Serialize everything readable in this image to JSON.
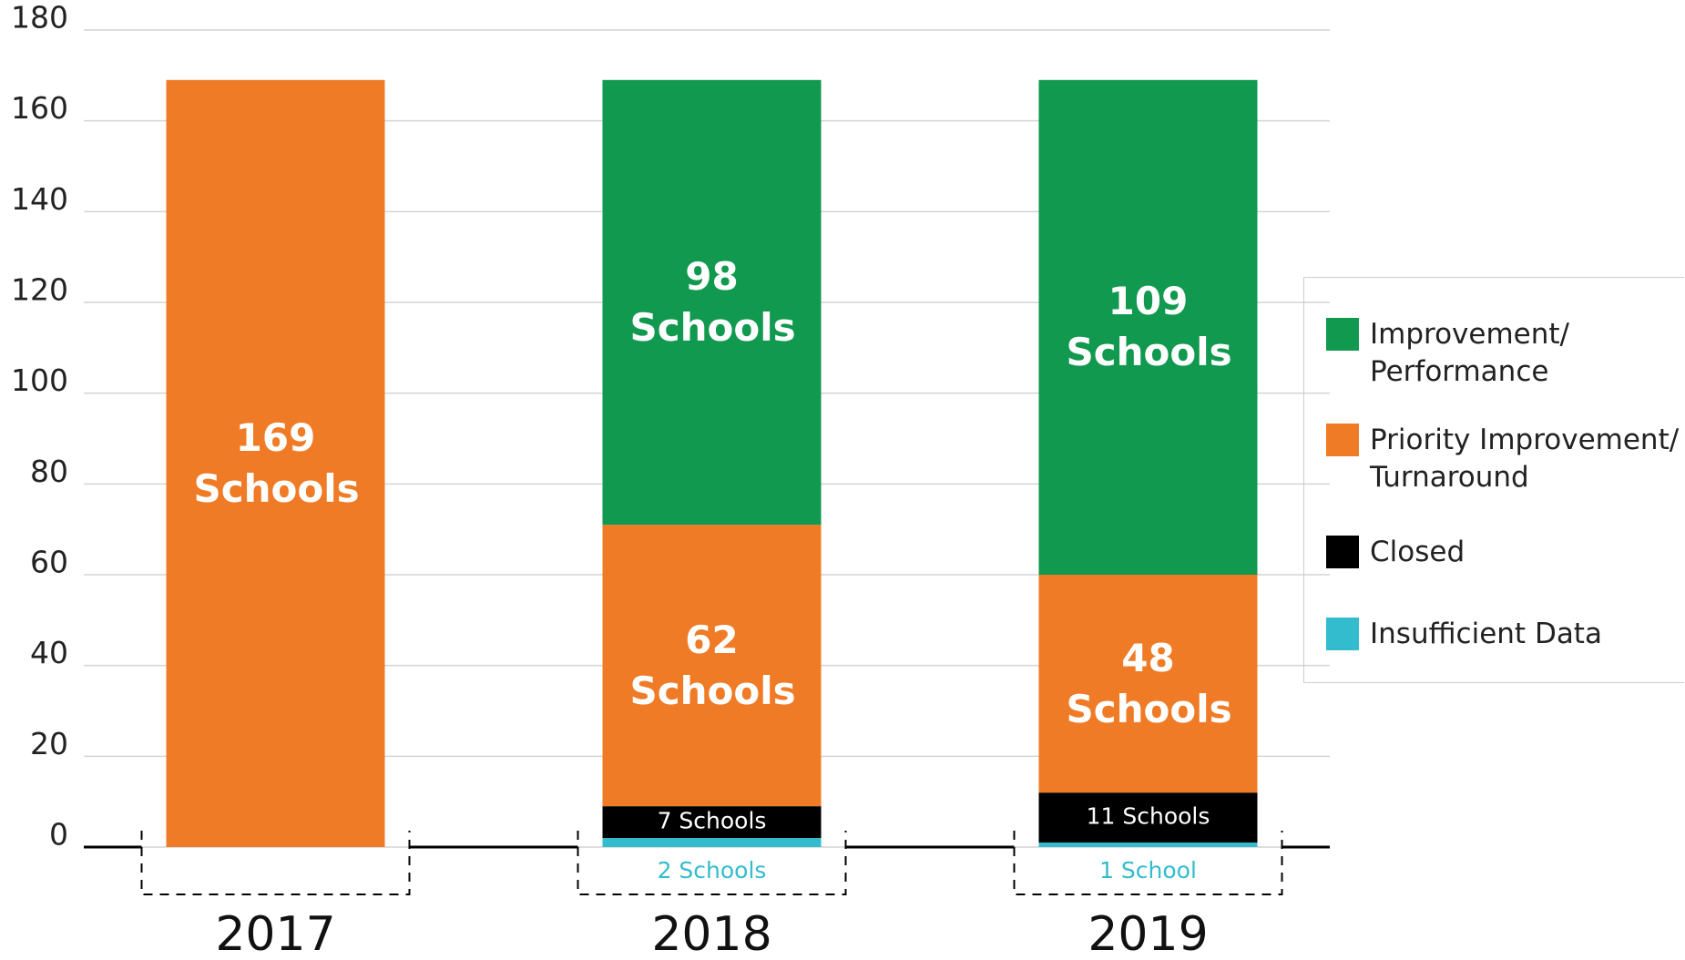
{
  "chart_data": {
    "type": "stacked_bar",
    "categories": [
      "2017",
      "2018",
      "2019"
    ],
    "series": [
      {
        "name": "Insufficient Data",
        "color": "#33bccd",
        "values": [
          null,
          2,
          1
        ],
        "value_labels": [
          null,
          "2 Schools",
          "1 School"
        ]
      },
      {
        "name": "Closed",
        "color": "#000000",
        "values": [
          null,
          7,
          11
        ],
        "value_labels": [
          null,
          "7 Schools",
          "11 Schools"
        ]
      },
      {
        "name": "Priority Improvement/ Turnaround",
        "color": "#f07b26",
        "values": [
          169,
          62,
          48
        ],
        "value_labels": [
          "169 Schools",
          "62 Schools",
          "48 Schools"
        ]
      },
      {
        "name": "Improvement/ Performance",
        "color": "#10994f",
        "values": [
          null,
          98,
          109
        ],
        "value_labels": [
          null,
          "98 Schools",
          "109 Schools"
        ]
      }
    ],
    "ylim": [
      0,
      180
    ],
    "yticks": [
      0,
      20,
      40,
      60,
      80,
      100,
      120,
      140,
      160,
      180
    ],
    "grid": true,
    "legend": "right"
  }
}
